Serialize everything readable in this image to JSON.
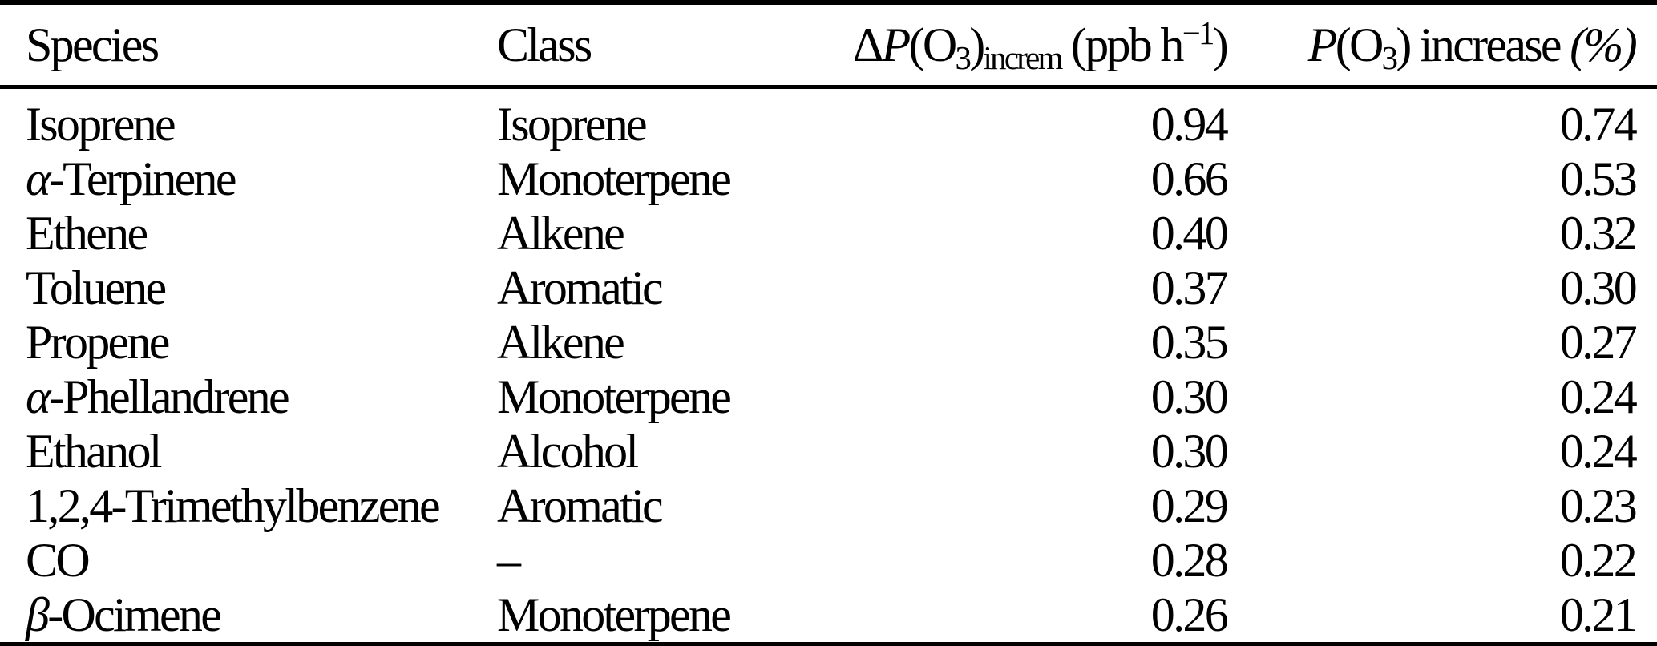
{
  "colors": {
    "background": "#ffffff",
    "text": "#000000",
    "rule": "#000000"
  },
  "table": {
    "header": {
      "species": "Species",
      "class": "Class",
      "dpo3_parts": [
        {
          "t": "Δ",
          "style": "normal"
        },
        {
          "t": "P",
          "style": "italic"
        },
        {
          "t": "(O",
          "style": "normal"
        },
        {
          "t": "3",
          "style": "sub"
        },
        {
          "t": ")",
          "style": "normal"
        },
        {
          "t": "increm",
          "style": "sub"
        },
        {
          "t": " (ppb h",
          "style": "normal"
        },
        {
          "t": "−1",
          "style": "sup"
        },
        {
          "t": ")",
          "style": "normal"
        }
      ],
      "po3_parts": [
        {
          "t": "P",
          "style": "italic"
        },
        {
          "t": "(O",
          "style": "normal"
        },
        {
          "t": "3",
          "style": "sub"
        },
        {
          "t": ")",
          "style": "normal"
        },
        {
          "t": " increase ",
          "style": "normal"
        },
        {
          "t": "(%)",
          "style": "italic"
        }
      ]
    },
    "rows": [
      {
        "species": "Isoprene",
        "class": "Isoprene",
        "dpo3_increm_ppb_h": "0.94",
        "po3_increase_pct": "0.74"
      },
      {
        "species": "α-Terpinene",
        "class": "Monoterpene",
        "dpo3_increm_ppb_h": "0.66",
        "po3_increase_pct": "0.53"
      },
      {
        "species": "Ethene",
        "class": "Alkene",
        "dpo3_increm_ppb_h": "0.40",
        "po3_increase_pct": "0.32"
      },
      {
        "species": "Toluene",
        "class": "Aromatic",
        "dpo3_increm_ppb_h": "0.37",
        "po3_increase_pct": "0.30"
      },
      {
        "species": "Propene",
        "class": "Alkene",
        "dpo3_increm_ppb_h": "0.35",
        "po3_increase_pct": "0.27"
      },
      {
        "species": "α-Phellandrene",
        "class": "Monoterpene",
        "dpo3_increm_ppb_h": "0.30",
        "po3_increase_pct": "0.24"
      },
      {
        "species": "Ethanol",
        "class": "Alcohol",
        "dpo3_increm_ppb_h": "0.30",
        "po3_increase_pct": "0.24"
      },
      {
        "species": "1,2,4-Trimethylbenzene",
        "class": "Aromatic",
        "dpo3_increm_ppb_h": "0.29",
        "po3_increase_pct": "0.23"
      },
      {
        "species": "CO",
        "class": "–",
        "dpo3_increm_ppb_h": "0.28",
        "po3_increase_pct": "0.22"
      },
      {
        "species": "β-Ocimene",
        "class": "Monoterpene",
        "dpo3_increm_ppb_h": "0.26",
        "po3_increase_pct": "0.21"
      }
    ]
  }
}
